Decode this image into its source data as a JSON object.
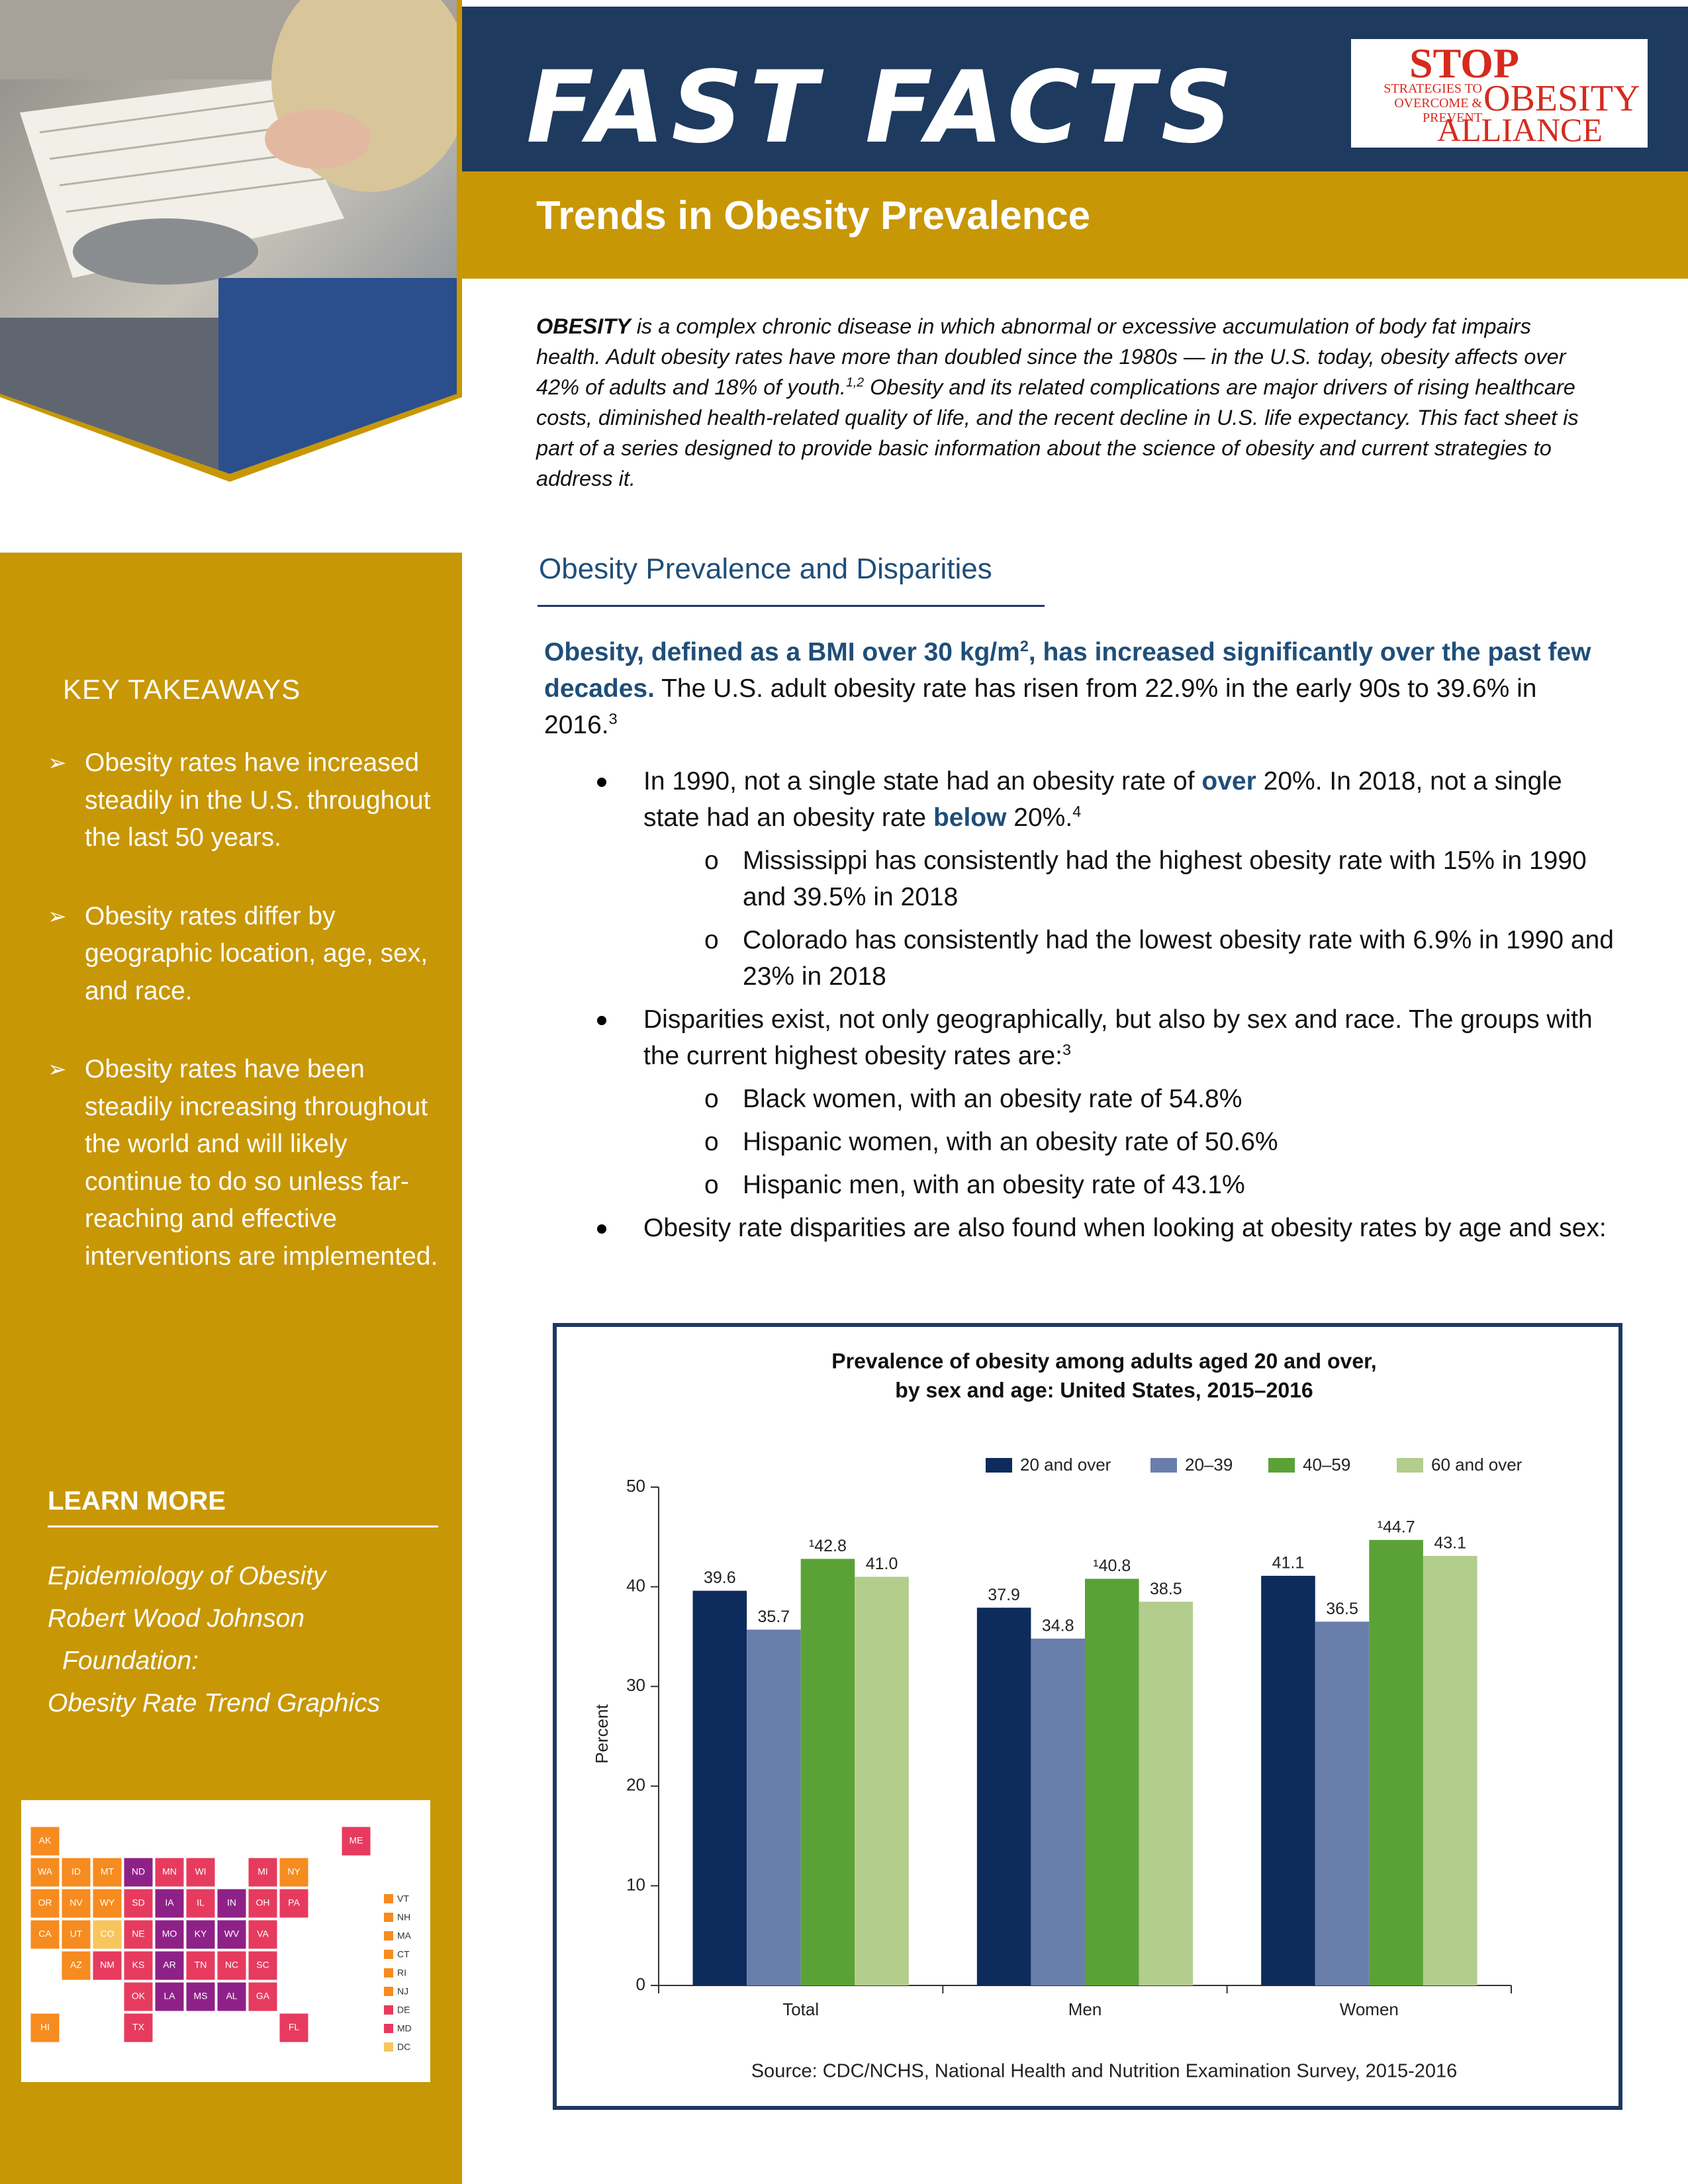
{
  "header": {
    "title": "FAST  FACTS",
    "subtitle": "Trends in Obesity Prevalence",
    "logo": {
      "stop": "STOP",
      "tagline": [
        "STRATEGIES TO",
        "OVERCOME & PREVENT"
      ],
      "obesity": "OBESITY",
      "alliance": "ALLIANCE"
    }
  },
  "intro": [
    "OBESITY",
    " is a complex chronic disease in which abnormal or excessive accumulation of body fat impairs health. Adult obesity rates have more than doubled since the 1980s — in the U.S. today, obesity affects over 42% of adults and 18% of youth.",
    "1,2",
    " Obesity and its related complications are major drivers of rising healthcare costs, diminished health-related quality of life, and the recent decline in U.S. life expectancy. This fact sheet is part of a series designed to provide basic information about the science of obesity and current strategies to address it."
  ],
  "sidebar": {
    "title": "KEY TAKEAWAYS",
    "takeaways": [
      "Obesity rates have increased steadily in the U.S. throughout the last 50 years.",
      "Obesity rates differ by geographic location, age, sex, and race.",
      "Obesity rates have been steadily increasing throughout the world and will likely continue to do so unless far-reaching and effective interventions are implemented."
    ],
    "learn_more": {
      "title": "LEARN MORE",
      "links": [
        "Epidemiology of Obesity",
        "Robert Wood Johnson",
        "Foundation:",
        "Obesity Rate Trend Graphics"
      ]
    },
    "map": {
      "states": [
        {
          "label": "AK",
          "color": "#f68b1f"
        },
        {
          "label": "ME",
          "color": "#e63b5e"
        },
        {
          "label": "WA",
          "color": "#f68b1f"
        },
        {
          "label": "ID",
          "color": "#f68b1f"
        },
        {
          "label": "MT",
          "color": "#f68b1f"
        },
        {
          "label": "ND",
          "color": "#8e2188"
        },
        {
          "label": "MN",
          "color": "#e63b5e"
        },
        {
          "label": "WI",
          "color": "#e63b5e"
        },
        {
          "label": "MI",
          "color": "#e63b5e"
        },
        {
          "label": "NY",
          "color": "#f68b1f"
        },
        {
          "label": "OR",
          "color": "#f68b1f"
        },
        {
          "label": "NV",
          "color": "#f68b1f"
        },
        {
          "label": "WY",
          "color": "#f68b1f"
        },
        {
          "label": "SD",
          "color": "#e63b5e"
        },
        {
          "label": "IA",
          "color": "#8e2188"
        },
        {
          "label": "IL",
          "color": "#e63b5e"
        },
        {
          "label": "IN",
          "color": "#8e2188"
        },
        {
          "label": "OH",
          "color": "#e63b5e"
        },
        {
          "label": "PA",
          "color": "#e63b5e"
        },
        {
          "label": "CA",
          "color": "#f68b1f"
        },
        {
          "label": "UT",
          "color": "#f68b1f"
        },
        {
          "label": "CO",
          "color": "#f8c55d"
        },
        {
          "label": "NE",
          "color": "#e63b5e"
        },
        {
          "label": "MO",
          "color": "#8e2188"
        },
        {
          "label": "KY",
          "color": "#8e2188"
        },
        {
          "label": "WV",
          "color": "#8e2188"
        },
        {
          "label": "VA",
          "color": "#e63b5e"
        },
        {
          "label": "AZ",
          "color": "#f68b1f"
        },
        {
          "label": "NM",
          "color": "#e63b5e"
        },
        {
          "label": "KS",
          "color": "#e63b5e"
        },
        {
          "label": "AR",
          "color": "#8e2188"
        },
        {
          "label": "TN",
          "color": "#e63b5e"
        },
        {
          "label": "NC",
          "color": "#e63b5e"
        },
        {
          "label": "SC",
          "color": "#e63b5e"
        },
        {
          "label": "OK",
          "color": "#e63b5e"
        },
        {
          "label": "LA",
          "color": "#8e2188"
        },
        {
          "label": "MS",
          "color": "#8e2188"
        },
        {
          "label": "AL",
          "color": "#8e2188"
        },
        {
          "label": "GA",
          "color": "#e63b5e"
        },
        {
          "label": "HI",
          "color": "#f68b1f"
        },
        {
          "label": "TX",
          "color": "#e63b5e"
        },
        {
          "label": "FL",
          "color": "#e63b5e"
        }
      ],
      "legend_states": [
        {
          "label": "VT",
          "color": "#f68b1f"
        },
        {
          "label": "NH",
          "color": "#f68b1f"
        },
        {
          "label": "MA",
          "color": "#f68b1f"
        },
        {
          "label": "CT",
          "color": "#f68b1f"
        },
        {
          "label": "RI",
          "color": "#f68b1f"
        },
        {
          "label": "NJ",
          "color": "#f68b1f"
        },
        {
          "label": "DE",
          "color": "#e63b5e"
        },
        {
          "label": "MD",
          "color": "#e63b5e"
        },
        {
          "label": "DC",
          "color": "#f8c55d"
        }
      ]
    }
  },
  "section": {
    "title": "Obesity Prevalence and Disparities",
    "lead": [
      "Obesity, defined as a BMI over 30 kg/m",
      "2",
      ", has increased significantly over the past few decades.",
      " The U.S. adult obesity rate has risen from 22.9% in the early 90s to 39.6% in 2016.",
      "3"
    ],
    "bullets": [
      {
        "parts": [
          "In 1990, not a single state had an obesity rate of ",
          "over",
          " 20%. In 2018, not a single state had an obesity rate ",
          "below",
          " 20%.",
          "4"
        ],
        "sub": [
          "Mississippi has consistently had the highest obesity rate with 15% in 1990 and 39.5% in 2018",
          "Colorado has consistently had the lowest obesity rate with 6.9% in 1990 and 23% in 2018"
        ]
      },
      {
        "parts": [
          "Disparities exist, not only geographically, but also by sex and race. The groups with the current highest obesity rates are:",
          "3"
        ],
        "sub": [
          "Black women, with an obesity rate of 54.8%",
          "Hispanic women, with an obesity rate of 50.6%",
          "Hispanic men, with an obesity rate of 43.1%"
        ]
      },
      {
        "parts": [
          "Obesity rate disparities are also found when looking at obesity rates by age and sex:"
        ]
      }
    ]
  },
  "chart_data": {
    "type": "bar",
    "title": [
      "Prevalence of obesity among adults aged 20 and over,",
      "by sex and age: United States, 2015–2016"
    ],
    "ylabel": "Percent",
    "categories": [
      "Total",
      "Men",
      "Women"
    ],
    "series": [
      {
        "name": "20 and over",
        "color": "#0d2b5c",
        "values": [
          39.6,
          37.9,
          41.1
        ]
      },
      {
        "name": "20–39",
        "color": "#6a7eab",
        "values": [
          35.7,
          34.8,
          36.5
        ]
      },
      {
        "name": "40–59",
        "color": "#5aa236",
        "values": [
          42.8,
          40.8,
          44.7
        ],
        "value_labels": [
          "¹42.8",
          "¹40.8",
          "¹44.7"
        ]
      },
      {
        "name": "60 and over",
        "color": "#b3cd8d",
        "values": [
          41.0,
          38.5,
          43.1
        ],
        "value_labels": [
          "41.0",
          "38.5",
          "43.1"
        ]
      }
    ],
    "ylim": [
      0,
      50
    ],
    "yticks": [
      0,
      10,
      20,
      30,
      40,
      50
    ],
    "source": "Source: CDC/NCHS, National Health and Nutrition Examination Survey, 2015-2016"
  }
}
